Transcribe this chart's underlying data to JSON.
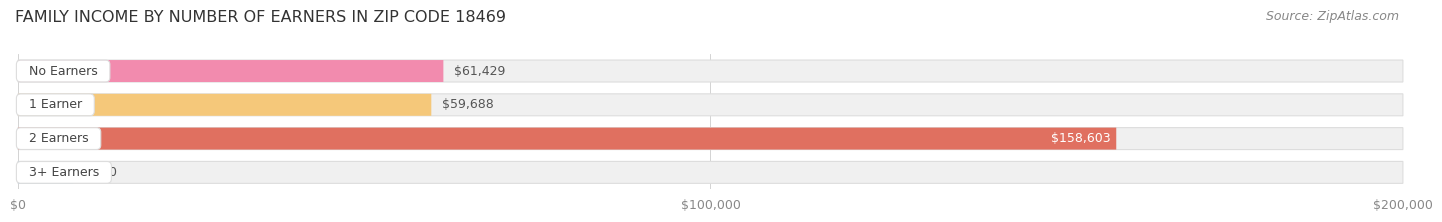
{
  "title": "FAMILY INCOME BY NUMBER OF EARNERS IN ZIP CODE 18469",
  "source": "Source: ZipAtlas.com",
  "categories": [
    "No Earners",
    "1 Earner",
    "2 Earners",
    "3+ Earners"
  ],
  "values": [
    61429,
    59688,
    158603,
    0
  ],
  "bar_colors": [
    "#F28BAE",
    "#F5C87A",
    "#E07060",
    "#A8C4E0"
  ],
  "bar_bg_color": "#F0F0F0",
  "bar_border_color": "#DDDDDD",
  "label_bg_colors": [
    "#F28BAE",
    "#F5C87A",
    "#E07060",
    "#A8C4E0"
  ],
  "label_colors": [
    "#555555",
    "#555555",
    "#555555",
    "#555555"
  ],
  "value_label_colors": [
    "#555555",
    "#555555",
    "#ffffff",
    "#555555"
  ],
  "xlim": [
    0,
    200000
  ],
  "xticks": [
    0,
    100000,
    200000
  ],
  "xtick_labels": [
    "$0",
    "$100,000",
    "$200,000"
  ],
  "background_color": "#ffffff",
  "title_fontsize": 11.5,
  "source_fontsize": 9,
  "tick_fontsize": 9,
  "bar_label_fontsize": 9,
  "category_fontsize": 9,
  "bar_height": 0.65,
  "bar_gap": 0.08
}
